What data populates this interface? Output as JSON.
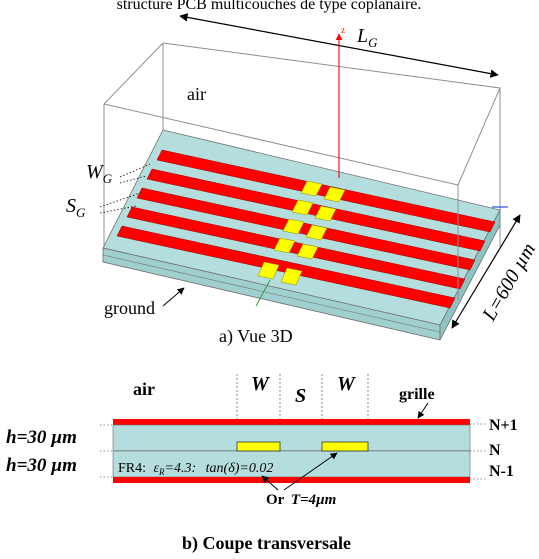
{
  "header_text": "structure PCB multicouches de type coplanaire.",
  "view3d": {
    "length_label_main": "L",
    "length_label_sub": "G",
    "axis_label": "z",
    "air_label": "air",
    "width_label_main": "W",
    "width_label_sub": "G",
    "spacing_label_main": "S",
    "spacing_label_sub": "G",
    "ground_label": "ground",
    "board_length_label": "L=600 µm",
    "caption": "a) Vue 3D"
  },
  "cross_section": {
    "air_label": "air",
    "w_label_left": "W",
    "s_label": "S",
    "w_label_right": "W",
    "grille_label": "grille",
    "layer_top": "N+1",
    "layer_mid": "N",
    "layer_bottom": "N-1",
    "h_label_top": "h=30 µm",
    "h_label_bottom": "h=30 µm",
    "fr4_prefix": "FR4:",
    "epsilon_symbol": "ε",
    "epsilon_sub": "R",
    "epsilon_value": "=4.3:",
    "tan_label": "tan(δ)=0.02",
    "or_label": "Or",
    "thickness_label": "T=4µm",
    "caption": "b) Coupe transversale"
  },
  "colors": {
    "strip_red": "#ff0000",
    "substrate_cyan": "#b4dede",
    "conductor_yellow": "#ffff00",
    "wire_gray": "#909090"
  }
}
